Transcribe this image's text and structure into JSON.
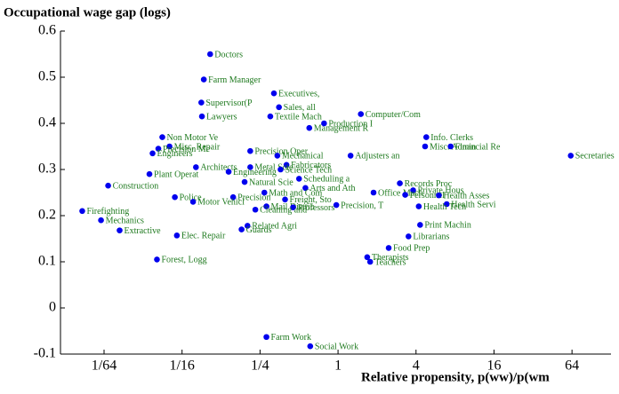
{
  "chart_data": {
    "type": "scatter",
    "y_label": "Occupational wage gap (logs)",
    "x_label": "Relative propensity, p(ww)/p(wm",
    "xscale": "log",
    "color": "#0000ee",
    "label_color": "#1f7a1f",
    "xlim": [
      0.0072,
      128
    ],
    "ylim": [
      -0.1,
      0.6
    ],
    "xticks": [
      {
        "value": 0.015625,
        "label": "1/64"
      },
      {
        "value": 0.0625,
        "label": "1/16"
      },
      {
        "value": 0.25,
        "label": "1/4"
      },
      1,
      4,
      16,
      64
    ],
    "yticks": [
      -0.1,
      0,
      0.1,
      0.2,
      0.3,
      0.4,
      0.5,
      0.6
    ],
    "labels": [
      "Doctors",
      "Farm Manager",
      "Executives,",
      "Supervisor(P",
      "Sales, all",
      "Lawyers",
      "Textile Mach",
      "Computer/Com",
      "Production I",
      "Management R",
      "Info. Clerks",
      "Non Motor Ve",
      "Misc. Repair",
      "Misc. Admin",
      "Financial Re",
      "Precision Me",
      "Engineers",
      "Precision Oper",
      "Mechanical",
      "Fabricators",
      "Secretaries",
      "Adjusters an",
      "Architects",
      "Metal Scie",
      "Plant Operat",
      "Engineering",
      "Science Tech",
      "Scheduling a",
      "Natural Scie",
      "Records Proc",
      "Construction",
      "Arts and Ath",
      "Math and Com",
      "Office Mach",
      "Private Hous",
      "Personnel",
      "Health Asses",
      "Police",
      "Precision",
      "Freight, Sto",
      "Motor Vehicl",
      "Health Servi",
      "Precision, T",
      "Mail Distrib",
      "Health Tech",
      "Professors",
      "Cleaning and",
      "Firefighting",
      "Mechanics",
      "Print Machin",
      "Related Agri",
      "Guards",
      "Extractive",
      "Elec. Repair",
      "Librarians",
      "Food Prep",
      "Therapists",
      "Teachers",
      "Forest, Logg",
      "Farm Work",
      "Social Work"
    ],
    "x": [
      0.103,
      0.092,
      0.32,
      0.088,
      0.35,
      0.089,
      0.3,
      1.5,
      0.78,
      0.6,
      4.8,
      0.044,
      0.05,
      4.7,
      7.4,
      0.041,
      0.037,
      0.21,
      0.34,
      0.4,
      62.6,
      1.25,
      0.08,
      0.21,
      0.035,
      0.143,
      0.36,
      0.5,
      0.19,
      3.0,
      0.0168,
      0.56,
      0.27,
      1.88,
      3.8,
      3.3,
      6.0,
      0.055,
      0.155,
      0.39,
      0.076,
      6.9,
      0.97,
      0.28,
      4.2,
      0.45,
      0.23,
      0.0106,
      0.0148,
      4.3,
      0.2,
      0.18,
      0.0206,
      0.057,
      3.5,
      2.46,
      1.68,
      1.77,
      0.04,
      0.28,
      0.61
    ],
    "y": [
      0.55,
      0.495,
      0.465,
      0.445,
      0.435,
      0.415,
      0.415,
      0.42,
      0.4,
      0.39,
      0.37,
      0.37,
      0.35,
      0.35,
      0.35,
      0.345,
      0.335,
      0.34,
      0.33,
      0.31,
      0.33,
      0.33,
      0.305,
      0.305,
      0.29,
      0.295,
      0.3,
      0.28,
      0.273,
      0.27,
      0.265,
      0.26,
      0.25,
      0.25,
      0.255,
      0.245,
      0.244,
      0.24,
      0.24,
      0.235,
      0.23,
      0.225,
      0.223,
      0.22,
      0.22,
      0.218,
      0.213,
      0.21,
      0.19,
      0.18,
      0.178,
      0.17,
      0.168,
      0.157,
      0.155,
      0.13,
      0.11,
      0.1,
      0.105,
      -0.063,
      -0.083
    ]
  }
}
